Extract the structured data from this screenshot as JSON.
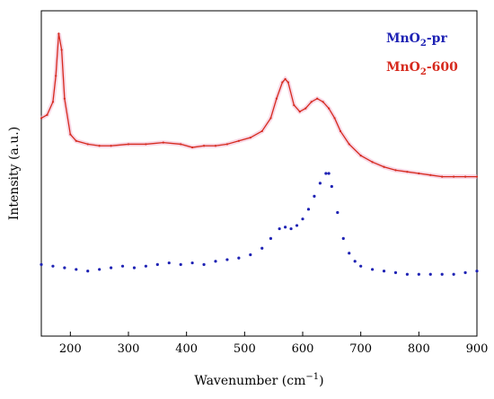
{
  "chart_data": {
    "type": "line",
    "xlabel": "Wavenumber (cm",
    "xlabel_sup": "−1",
    "xlabel_tail": ")",
    "ylabel": "Intensity (a.u.)",
    "xlim": [
      150,
      900
    ],
    "ylim": [
      0,
      1
    ],
    "grid": false,
    "y_ticks_shown": false,
    "x_ticks": [
      200,
      300,
      400,
      500,
      600,
      700,
      800,
      900
    ],
    "legend_position": "top-right",
    "series": [
      {
        "name": "MnO2-pr",
        "legend_parts": [
          "MnO",
          "2",
          "-pr"
        ],
        "color": "#1f23b4",
        "style": "dots",
        "x": [
          150,
          170,
          190,
          210,
          230,
          250,
          270,
          290,
          310,
          330,
          350,
          370,
          390,
          410,
          430,
          450,
          470,
          490,
          510,
          530,
          545,
          560,
          570,
          580,
          590,
          600,
          610,
          620,
          630,
          640,
          645,
          650,
          660,
          670,
          680,
          690,
          700,
          720,
          740,
          760,
          780,
          800,
          820,
          840,
          860,
          880,
          900
        ],
        "y": [
          0.22,
          0.215,
          0.21,
          0.205,
          0.2,
          0.205,
          0.21,
          0.215,
          0.21,
          0.215,
          0.22,
          0.225,
          0.22,
          0.225,
          0.22,
          0.23,
          0.235,
          0.24,
          0.25,
          0.27,
          0.3,
          0.33,
          0.335,
          0.33,
          0.34,
          0.36,
          0.39,
          0.43,
          0.47,
          0.5,
          0.5,
          0.46,
          0.38,
          0.3,
          0.255,
          0.23,
          0.215,
          0.205,
          0.2,
          0.195,
          0.19,
          0.19,
          0.19,
          0.19,
          0.19,
          0.195,
          0.2
        ]
      },
      {
        "name": "MnO2-600",
        "legend_parts": [
          "MnO",
          "2",
          "-600"
        ],
        "color": "#d62a1e",
        "style": "line",
        "x": [
          150,
          160,
          170,
          175,
          180,
          185,
          190,
          200,
          210,
          230,
          250,
          270,
          300,
          330,
          360,
          390,
          410,
          430,
          450,
          470,
          490,
          510,
          530,
          545,
          555,
          565,
          570,
          575,
          585,
          595,
          605,
          615,
          625,
          635,
          645,
          655,
          665,
          680,
          700,
          720,
          740,
          760,
          780,
          800,
          820,
          840,
          860,
          880,
          900
        ],
        "y": [
          0.67,
          0.68,
          0.72,
          0.8,
          0.93,
          0.88,
          0.73,
          0.62,
          0.6,
          0.59,
          0.585,
          0.585,
          0.59,
          0.59,
          0.595,
          0.59,
          0.58,
          0.585,
          0.585,
          0.59,
          0.6,
          0.61,
          0.63,
          0.67,
          0.73,
          0.78,
          0.79,
          0.78,
          0.71,
          0.69,
          0.7,
          0.72,
          0.73,
          0.72,
          0.7,
          0.67,
          0.63,
          0.59,
          0.555,
          0.535,
          0.52,
          0.51,
          0.505,
          0.5,
          0.495,
          0.49,
          0.49,
          0.49,
          0.49
        ]
      }
    ]
  }
}
